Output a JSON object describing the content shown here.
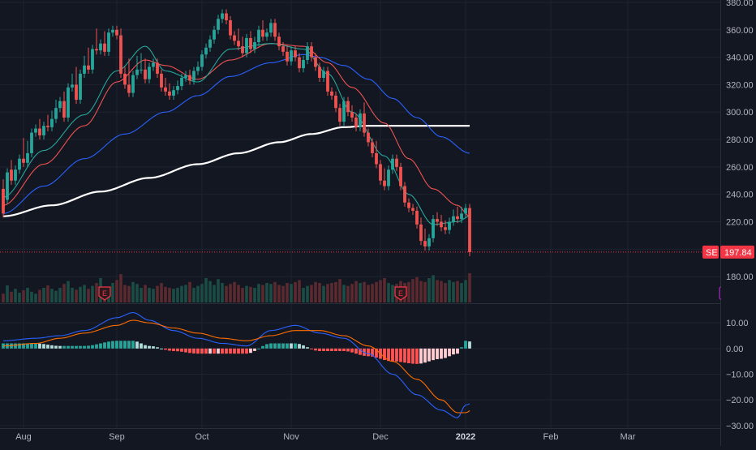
{
  "colors": {
    "background": "#131722",
    "grid": "#1f2330",
    "axis_text": "#b2b5be",
    "up": "#26a69a",
    "down": "#ef5350",
    "ma_fast": "#26a69a",
    "ma_mid": "#ef5350",
    "ma_slow": "#2962ff",
    "ma_200": "#ffffff",
    "macd_line": "#2962ff",
    "signal_line": "#ff6d00",
    "hist_up_strong": "#26a69a",
    "hist_up_weak": "#b2dfdb",
    "hist_down_strong": "#ff5252",
    "hist_down_weak": "#ffcdd2",
    "earnings_badge": "#f23645",
    "earnings_badge_future": "#9c27b0",
    "price_tag": "#f23645"
  },
  "symbol_tag": {
    "symbol": "SE",
    "price": "197.84"
  },
  "earnings_icon": {
    "glyph": "E",
    "icon": "earnings-flag-icon"
  },
  "chart_data": [
    {
      "type": "candlestick",
      "x_axis": {
        "labels": [
          "Aug",
          "Sep",
          "Oct",
          "Nov",
          "Dec",
          "2022",
          "Feb",
          "Mar"
        ],
        "label_day_index": [
          5,
          28,
          49,
          71,
          93,
          114,
          135,
          154
        ]
      },
      "y_axis": {
        "min": 170,
        "max": 380,
        "ticks": [
          "380.00",
          "360.00",
          "340.00",
          "320.00",
          "300.00",
          "280.00",
          "260.00",
          "240.00",
          "220.00",
          "200.00",
          "180.00"
        ]
      },
      "last_price": 197.84,
      "candles_ohc": [
        [
          244,
          248,
          226
        ],
        [
          236,
          246,
          256
        ],
        [
          258,
          262,
          250
        ],
        [
          250,
          256,
          258
        ],
        [
          258,
          264,
          266
        ],
        [
          266,
          278,
          263
        ],
        [
          263,
          276,
          270
        ],
        [
          270,
          281,
          285
        ],
        [
          285,
          283,
          288
        ],
        [
          288,
          292,
          283
        ],
        [
          283,
          288,
          290
        ],
        [
          290,
          295,
          289
        ],
        [
          289,
          298,
          295
        ],
        [
          295,
          306,
          303
        ],
        [
          303,
          305,
          308
        ],
        [
          308,
          312,
          296
        ],
        [
          296,
          305,
          318
        ],
        [
          318,
          325,
          320
        ],
        [
          320,
          330,
          309
        ],
        [
          309,
          318,
          328
        ],
        [
          328,
          338,
          334
        ],
        [
          334,
          344,
          331
        ],
        [
          331,
          336,
          346
        ],
        [
          346,
          358,
          345
        ],
        [
          345,
          350,
          350
        ],
        [
          350,
          356,
          344
        ],
        [
          344,
          351,
          358
        ],
        [
          358,
          356,
          360
        ],
        [
          360,
          358,
          356
        ],
        [
          356,
          358,
          328
        ],
        [
          328,
          330,
          320
        ],
        [
          320,
          336,
          314
        ],
        [
          314,
          322,
          327
        ],
        [
          327,
          338,
          331
        ],
        [
          331,
          340,
          331
        ],
        [
          331,
          336,
          324
        ],
        [
          324,
          330,
          333
        ],
        [
          333,
          332,
          336
        ],
        [
          336,
          330,
          328
        ],
        [
          328,
          325,
          318
        ],
        [
          318,
          322,
          315
        ],
        [
          315,
          318,
          312
        ],
        [
          312,
          316,
          316
        ],
        [
          316,
          320,
          319
        ],
        [
          319,
          324,
          325
        ],
        [
          325,
          322,
          327
        ],
        [
          327,
          328,
          323
        ],
        [
          323,
          326,
          330
        ],
        [
          330,
          334,
          333
        ],
        [
          333,
          336,
          342
        ],
        [
          342,
          346,
          347
        ],
        [
          347,
          350,
          353
        ],
        [
          353,
          358,
          360
        ],
        [
          360,
          364,
          368
        ],
        [
          368,
          370,
          372
        ],
        [
          372,
          368,
          367
        ],
        [
          367,
          360,
          356
        ],
        [
          356,
          354,
          352
        ],
        [
          352,
          358,
          348
        ],
        [
          348,
          352,
          343
        ],
        [
          343,
          350,
          354
        ],
        [
          354,
          356,
          346
        ],
        [
          346,
          352,
          351
        ],
        [
          351,
          355,
          360
        ],
        [
          360,
          364,
          355
        ],
        [
          355,
          352,
          358
        ],
        [
          358,
          358,
          365
        ],
        [
          365,
          358,
          355
        ],
        [
          355,
          350,
          348
        ],
        [
          348,
          348,
          344
        ],
        [
          344,
          346,
          337
        ],
        [
          337,
          340,
          345
        ],
        [
          345,
          344,
          340
        ],
        [
          340,
          336,
          332
        ],
        [
          332,
          330,
          338
        ],
        [
          338,
          342,
          348
        ],
        [
          348,
          346,
          340
        ],
        [
          340,
          336,
          333
        ],
        [
          333,
          331,
          325
        ],
        [
          325,
          322,
          330
        ],
        [
          330,
          326,
          315
        ],
        [
          315,
          315,
          312
        ],
        [
          312,
          306,
          303
        ],
        [
          303,
          300,
          293
        ],
        [
          293,
          300,
          308
        ],
        [
          308,
          306,
          300
        ],
        [
          300,
          302,
          296
        ],
        [
          296,
          290,
          289
        ],
        [
          289,
          296,
          299
        ],
        [
          299,
          304,
          285
        ],
        [
          285,
          280,
          278
        ],
        [
          278,
          274,
          270
        ],
        [
          270,
          276,
          262
        ],
        [
          262,
          260,
          250
        ],
        [
          250,
          256,
          246
        ],
        [
          246,
          252,
          258
        ],
        [
          258,
          256,
          266
        ],
        [
          266,
          264,
          260
        ],
        [
          260,
          252,
          246
        ],
        [
          246,
          240,
          234
        ],
        [
          234,
          230,
          230
        ],
        [
          230,
          226,
          228
        ],
        [
          228,
          222,
          218
        ],
        [
          218,
          220,
          206
        ],
        [
          206,
          212,
          202
        ],
        [
          202,
          208,
          208
        ],
        [
          208,
          216,
          222
        ],
        [
          222,
          224,
          220
        ],
        [
          220,
          222,
          216
        ],
        [
          216,
          218,
          214
        ],
        [
          214,
          218,
          220
        ],
        [
          220,
          226,
          224
        ],
        [
          224,
          228,
          222
        ],
        [
          222,
          228,
          226
        ],
        [
          226,
          228,
          230
        ],
        [
          230,
          226,
          197.84
        ]
      ],
      "moving_averages": {
        "ma_fast_knots": [
          [
            0,
            238
          ],
          [
            10,
            272
          ],
          [
            20,
            298
          ],
          [
            28,
            330
          ],
          [
            35,
            348
          ],
          [
            40,
            330
          ],
          [
            48,
            322
          ],
          [
            56,
            346
          ],
          [
            66,
            350
          ],
          [
            74,
            346
          ],
          [
            80,
            328
          ],
          [
            86,
            300
          ],
          [
            94,
            268
          ],
          [
            100,
            240
          ],
          [
            106,
            218
          ],
          [
            112,
            220
          ],
          [
            115,
            224
          ]
        ],
        "ma_mid_knots": [
          [
            0,
            232
          ],
          [
            10,
            262
          ],
          [
            20,
            290
          ],
          [
            28,
            322
          ],
          [
            35,
            338
          ],
          [
            40,
            334
          ],
          [
            48,
            324
          ],
          [
            56,
            338
          ],
          [
            66,
            350
          ],
          [
            74,
            348
          ],
          [
            80,
            336
          ],
          [
            86,
            318
          ],
          [
            94,
            292
          ],
          [
            100,
            266
          ],
          [
            106,
            244
          ],
          [
            112,
            232
          ],
          [
            115,
            224
          ]
        ],
        "ma_slow_knots": [
          [
            0,
            226
          ],
          [
            10,
            246
          ],
          [
            20,
            266
          ],
          [
            30,
            284
          ],
          [
            40,
            300
          ],
          [
            48,
            312
          ],
          [
            56,
            326
          ],
          [
            66,
            336
          ],
          [
            74,
            342
          ],
          [
            78,
            340
          ],
          [
            84,
            334
          ],
          [
            90,
            324
          ],
          [
            96,
            310
          ],
          [
            102,
            296
          ],
          [
            108,
            282
          ],
          [
            115,
            270
          ]
        ],
        "ma_200_knots": [
          [
            0,
            224
          ],
          [
            12,
            232
          ],
          [
            24,
            242
          ],
          [
            36,
            252
          ],
          [
            48,
            262
          ],
          [
            58,
            270
          ],
          [
            68,
            278
          ],
          [
            76,
            284
          ],
          [
            84,
            289
          ],
          [
            90,
            290
          ],
          [
            100,
            290
          ],
          [
            115,
            290
          ]
        ]
      },
      "volume_ratio": [
        0.18,
        0.35,
        0.22,
        0.28,
        0.2,
        0.25,
        0.3,
        0.22,
        0.18,
        0.26,
        0.3,
        0.35,
        0.28,
        0.24,
        0.3,
        0.38,
        0.44,
        0.3,
        0.26,
        0.32,
        0.36,
        0.28,
        0.34,
        0.4,
        0.5,
        0.3,
        0.32,
        0.4,
        0.46,
        0.58,
        0.36,
        0.34,
        0.42,
        0.38,
        0.3,
        0.36,
        0.3,
        0.28,
        0.34,
        0.4,
        0.32,
        0.3,
        0.28,
        0.3,
        0.34,
        0.36,
        0.42,
        0.3,
        0.34,
        0.38,
        0.5,
        0.44,
        0.36,
        0.48,
        0.4,
        0.34,
        0.38,
        0.42,
        0.36,
        0.3,
        0.34,
        0.32,
        0.3,
        0.38,
        0.36,
        0.4,
        0.38,
        0.42,
        0.36,
        0.34,
        0.4,
        0.38,
        0.42,
        0.46,
        0.3,
        0.34,
        0.36,
        0.42,
        0.4,
        0.34,
        0.38,
        0.4,
        0.42,
        0.48,
        0.36,
        0.34,
        0.38,
        0.44,
        0.4,
        0.42,
        0.36,
        0.38,
        0.42,
        0.46,
        0.5,
        0.4,
        0.36,
        0.38,
        0.44,
        0.4,
        0.42,
        0.48,
        0.52,
        0.44,
        0.42,
        0.5,
        0.56,
        0.46,
        0.44,
        0.4,
        0.46,
        0.42,
        0.44,
        0.4,
        0.46,
        0.6
      ],
      "earnings_day_index": [
        25,
        98,
        178
      ]
    },
    {
      "type": "macd",
      "y_axis": {
        "min": -31,
        "max": 17,
        "ticks": [
          "10.00",
          "0.00",
          "−10.00",
          "−20.00",
          "−30.00"
        ]
      },
      "macd_knots": [
        [
          0,
          3
        ],
        [
          8,
          4
        ],
        [
          14,
          5
        ],
        [
          20,
          7
        ],
        [
          28,
          12
        ],
        [
          32,
          14
        ],
        [
          36,
          11
        ],
        [
          42,
          7
        ],
        [
          48,
          4
        ],
        [
          54,
          2
        ],
        [
          60,
          1
        ],
        [
          66,
          7
        ],
        [
          72,
          9
        ],
        [
          78,
          6
        ],
        [
          84,
          4
        ],
        [
          90,
          -2
        ],
        [
          96,
          -10
        ],
        [
          102,
          -18
        ],
        [
          108,
          -24
        ],
        [
          112,
          -27
        ],
        [
          114,
          -22
        ],
        [
          117,
          -20
        ],
        [
          120,
          -18
        ]
      ],
      "signal_knots": [
        [
          0,
          1
        ],
        [
          8,
          2
        ],
        [
          14,
          4
        ],
        [
          20,
          6
        ],
        [
          28,
          9
        ],
        [
          32,
          11
        ],
        [
          36,
          10
        ],
        [
          42,
          8
        ],
        [
          48,
          6
        ],
        [
          54,
          4
        ],
        [
          60,
          3
        ],
        [
          66,
          5
        ],
        [
          72,
          7
        ],
        [
          78,
          7
        ],
        [
          84,
          5
        ],
        [
          90,
          1
        ],
        [
          96,
          -5
        ],
        [
          102,
          -12
        ],
        [
          108,
          -20
        ],
        [
          112,
          -25
        ],
        [
          114,
          -25
        ],
        [
          117,
          -22
        ],
        [
          120,
          -20
        ]
      ]
    }
  ]
}
